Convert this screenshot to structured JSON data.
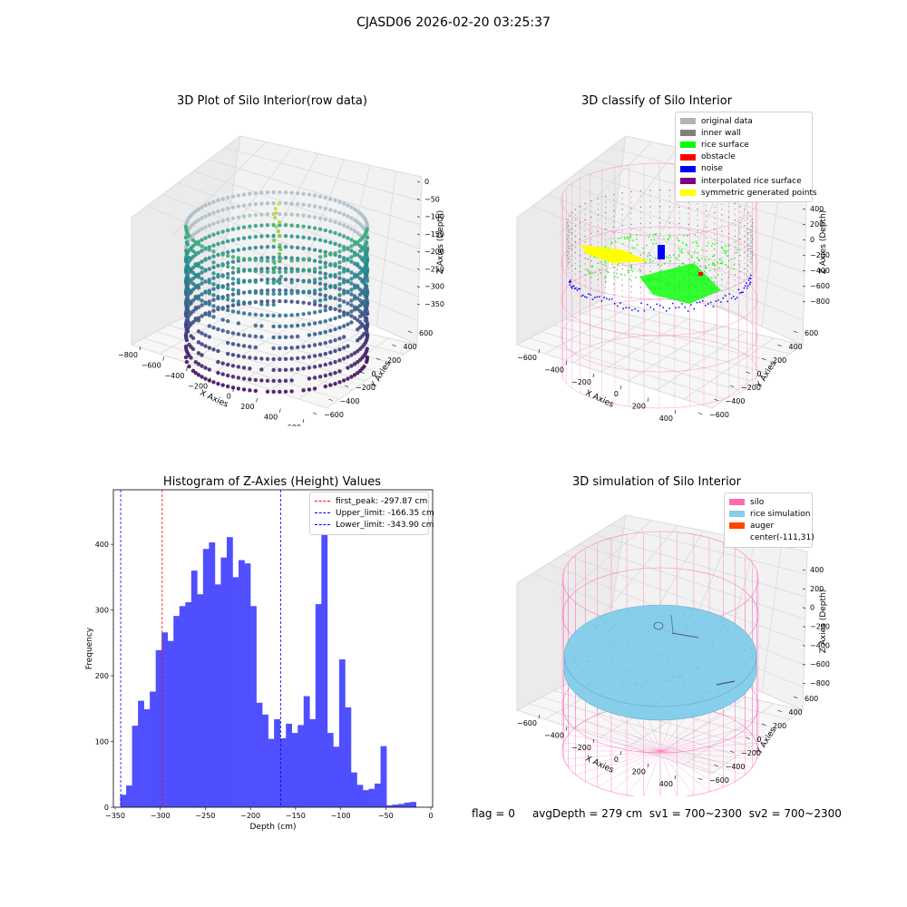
{
  "suptitle": "CJASD06 2026-02-20 03:25:37",
  "colors": {
    "gray": "#b3b3b3",
    "inner_wall": "#808080",
    "rice": "#00ff00",
    "obstacle": "#ff0000",
    "noise": "#0000ff",
    "interp": "#800080",
    "sym": "#ffff00",
    "silo": "#ff69b4",
    "rice_sim": "#87ceeb",
    "auger": "#ff4500",
    "hist": "#4f4fff"
  },
  "panels": {
    "raw": {
      "title": "3D Plot of Silo Interior(row data)",
      "x_label": "X Axies",
      "y_label": "Y Axies",
      "z_label": "Z Axies (Depth)",
      "x_ticks": [
        "−800",
        "−600",
        "−400",
        "−200",
        "0",
        "200",
        "400",
        "600"
      ],
      "y_ticks": [
        "600",
        "400",
        "200",
        "0",
        "−200",
        "−400",
        "−600"
      ],
      "z_ticks": [
        "0",
        "−50",
        "−100",
        "−150",
        "−200",
        "−250",
        "−300",
        "−350"
      ]
    },
    "classify": {
      "title": "3D classify of Silo Interior",
      "x_label": "X Axies",
      "y_label": "Y Axies",
      "z_label": "Z Axies (Depth)",
      "x_ticks": [
        "−600",
        "−400",
        "−200",
        "0",
        "200",
        "400"
      ],
      "y_ticks": [
        "600",
        "400",
        "200",
        "0",
        "−200",
        "−400",
        "−600"
      ],
      "z_ticks": [
        "400",
        "200",
        "0",
        "−200",
        "−400",
        "−600",
        "−800"
      ],
      "legend": [
        {
          "label": "original data",
          "color_key": "gray"
        },
        {
          "label": "inner wall",
          "color_key": "inner_wall"
        },
        {
          "label": "rice surface",
          "color_key": "rice"
        },
        {
          "label": "obstacle",
          "color_key": "obstacle"
        },
        {
          "label": "noise",
          "color_key": "noise"
        },
        {
          "label": "interpolated rice surface",
          "color_key": "interp"
        },
        {
          "label": "symmetric generated points",
          "color_key": "sym"
        }
      ]
    },
    "simulation": {
      "title": "3D simulation of Silo Interior",
      "x_label": "X Axies",
      "y_label": "Y Axies",
      "z_label": "Z Axies (Depth)",
      "x_ticks": [
        "−600",
        "−400",
        "−200",
        "0",
        "200",
        "400"
      ],
      "y_ticks": [
        "600",
        "400",
        "200",
        "0",
        "−200",
        "−400",
        "−600"
      ],
      "z_ticks": [
        "400",
        "200",
        "0",
        "−200",
        "−400",
        "−600",
        "−800"
      ],
      "legend": [
        {
          "label": "silo",
          "color_key": "silo"
        },
        {
          "label": "rice simulation",
          "color_key": "rice_sim"
        },
        {
          "label": "auger",
          "color_key": "auger"
        },
        {
          "label": "center(-111,31)",
          "color_key": ""
        }
      ]
    }
  },
  "status": {
    "flag": "flag = 0",
    "avg_depth": "avgDepth = 279 cm",
    "sv1": "sv1 = 700~2300",
    "sv2": "sv2 = 700~2300"
  },
  "chart_data": [
    {
      "type": "bar",
      "title": "Histogram of Z-Axies (Height) Values",
      "xlabel": "Depth (cm)",
      "ylabel": "Frequency",
      "xlim": [
        -352,
        2
      ],
      "ylim": [
        0,
        483
      ],
      "x_ticks": [
        -350,
        -300,
        -250,
        -200,
        -150,
        -100,
        -50,
        0
      ],
      "x_tick_labels": [
        "−350",
        "−300",
        "−250",
        "−200",
        "−150",
        "−100",
        "−50",
        "0"
      ],
      "y_ticks": [
        0,
        100,
        200,
        300,
        400
      ],
      "bin_start": -344.4,
      "bin_width": 6.56,
      "values": [
        19,
        33,
        124,
        162,
        149,
        176,
        239,
        266,
        253,
        291,
        306,
        312,
        360,
        324,
        393,
        403,
        339,
        380,
        411,
        350,
        376,
        371,
        306,
        159,
        141,
        104,
        134,
        105,
        127,
        113,
        125,
        169,
        134,
        309,
        460,
        113,
        92,
        225,
        152,
        53,
        34,
        26,
        28,
        36,
        93,
        3,
        4,
        5,
        7,
        8
      ],
      "vlines": [
        {
          "x": -297.87,
          "color": "#ff0000",
          "label": "first_peak: -297.87 cm"
        },
        {
          "x": -166.35,
          "color": "#0000ff",
          "label": "Upper_limit: -166.35 cm"
        },
        {
          "x": -343.9,
          "color": "#0000ff",
          "label": "Lower_limit: -343.90 cm"
        }
      ],
      "legend_position": "top-right"
    },
    {
      "type": "scatter",
      "title": "3D Plot of Silo Interior(row data)",
      "xlim": [
        -800,
        600
      ],
      "ylim": [
        -600,
        600
      ],
      "zlim": [
        -360,
        0
      ]
    },
    {
      "type": "scatter",
      "title": "3D classify of Silo Interior",
      "xlim": [
        -700,
        500
      ],
      "ylim": [
        -600,
        600
      ],
      "zlim": [
        -900,
        400
      ]
    },
    {
      "type": "scatter",
      "title": "3D simulation of Silo Interior",
      "xlim": [
        -700,
        500
      ],
      "ylim": [
        -600,
        600
      ],
      "zlim": [
        -900,
        400
      ]
    }
  ]
}
